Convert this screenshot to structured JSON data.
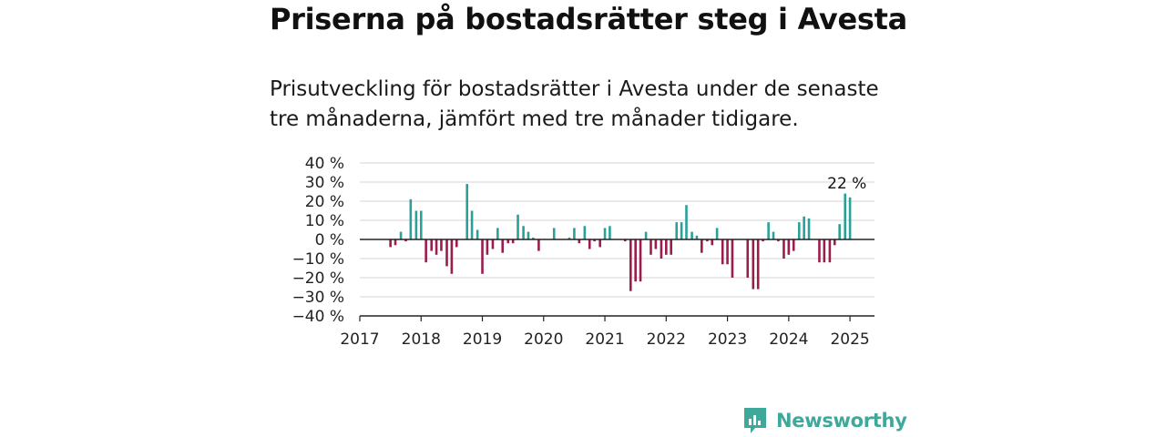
{
  "header": {
    "title": "Priserna på bostadsrätter steg i Avesta",
    "subtitle": "Prisutveckling för bostadsrätter i Avesta under de senaste tre månaderna, jämfört med tre månader tidigare."
  },
  "colors": {
    "positive": "#2aa198",
    "negative": "#9b1d4e",
    "brand": "#3ea89b"
  },
  "brand": {
    "name": "Newsworthy",
    "icon": "bar-chart-speech-bubble-icon"
  },
  "chart_data": {
    "type": "bar",
    "title": "",
    "xlabel": "",
    "ylabel": "",
    "ylim": [
      -40,
      40
    ],
    "xlim": [
      2017,
      2025.4
    ],
    "grid": true,
    "y_ticks": [
      40,
      30,
      20,
      10,
      0,
      -10,
      -20,
      -30,
      -40
    ],
    "y_tick_labels": [
      "40 %",
      "30 %",
      "20 %",
      "10 %",
      "0 %",
      "−10 %",
      "−20 %",
      "−30 %",
      "−40 %"
    ],
    "x_ticks": [
      2017,
      2018,
      2019,
      2020,
      2021,
      2022,
      2023,
      2024,
      2025
    ],
    "x_tick_labels": [
      "2017",
      "2018",
      "2019",
      "2020",
      "2021",
      "2022",
      "2023",
      "2024",
      "2025"
    ],
    "annotation": {
      "text": "22 %",
      "x": 2024.95,
      "y": 22
    },
    "x": [
      2017.5,
      2017.58,
      2017.67,
      2017.75,
      2017.83,
      2017.92,
      2018.0,
      2018.08,
      2018.17,
      2018.25,
      2018.33,
      2018.42,
      2018.5,
      2018.58,
      2018.67,
      2018.75,
      2018.83,
      2018.92,
      2019.0,
      2019.08,
      2019.17,
      2019.25,
      2019.33,
      2019.42,
      2019.5,
      2019.58,
      2019.67,
      2019.75,
      2019.83,
      2019.92,
      2020.0,
      2020.08,
      2020.17,
      2020.25,
      2020.33,
      2020.42,
      2020.5,
      2020.58,
      2020.67,
      2020.75,
      2020.83,
      2020.92,
      2021.0,
      2021.08,
      2021.17,
      2021.25,
      2021.33,
      2021.42,
      2021.5,
      2021.58,
      2021.67,
      2021.75,
      2021.83,
      2021.92,
      2022.0,
      2022.08,
      2022.17,
      2022.25,
      2022.33,
      2022.42,
      2022.5,
      2022.58,
      2022.67,
      2022.75,
      2022.83,
      2022.92,
      2023.0,
      2023.08,
      2023.17,
      2023.25,
      2023.33,
      2023.42,
      2023.5,
      2023.58,
      2023.67,
      2023.75,
      2023.83,
      2023.92,
      2024.0,
      2024.08,
      2024.17,
      2024.25,
      2024.33,
      2024.42,
      2024.5,
      2024.58,
      2024.67,
      2024.75,
      2024.83,
      2024.92,
      2025.0
    ],
    "values": [
      -4,
      -3,
      4,
      -1,
      21,
      15,
      15,
      -12,
      -6,
      -8,
      -6,
      -14,
      -18,
      -4,
      0,
      29,
      15,
      5,
      -18,
      -8,
      -5,
      6,
      -7,
      -2,
      -2,
      13,
      7,
      4,
      1,
      -6,
      0,
      0,
      6,
      0,
      0,
      1,
      6,
      -2,
      7,
      -5,
      -1,
      -4,
      6,
      7,
      0,
      0,
      -1,
      -27,
      -22,
      -22,
      4,
      -8,
      -5,
      -10,
      -8,
      -8,
      9,
      9,
      18,
      4,
      2,
      -7,
      -1,
      -3,
      6,
      -13,
      -13,
      -20,
      0,
      0,
      -20,
      -26,
      -26,
      -1,
      9,
      4,
      -1,
      -10,
      -8,
      -6,
      9,
      12,
      11,
      0,
      -12,
      -12,
      -12,
      -3,
      8,
      24,
      22
    ]
  }
}
